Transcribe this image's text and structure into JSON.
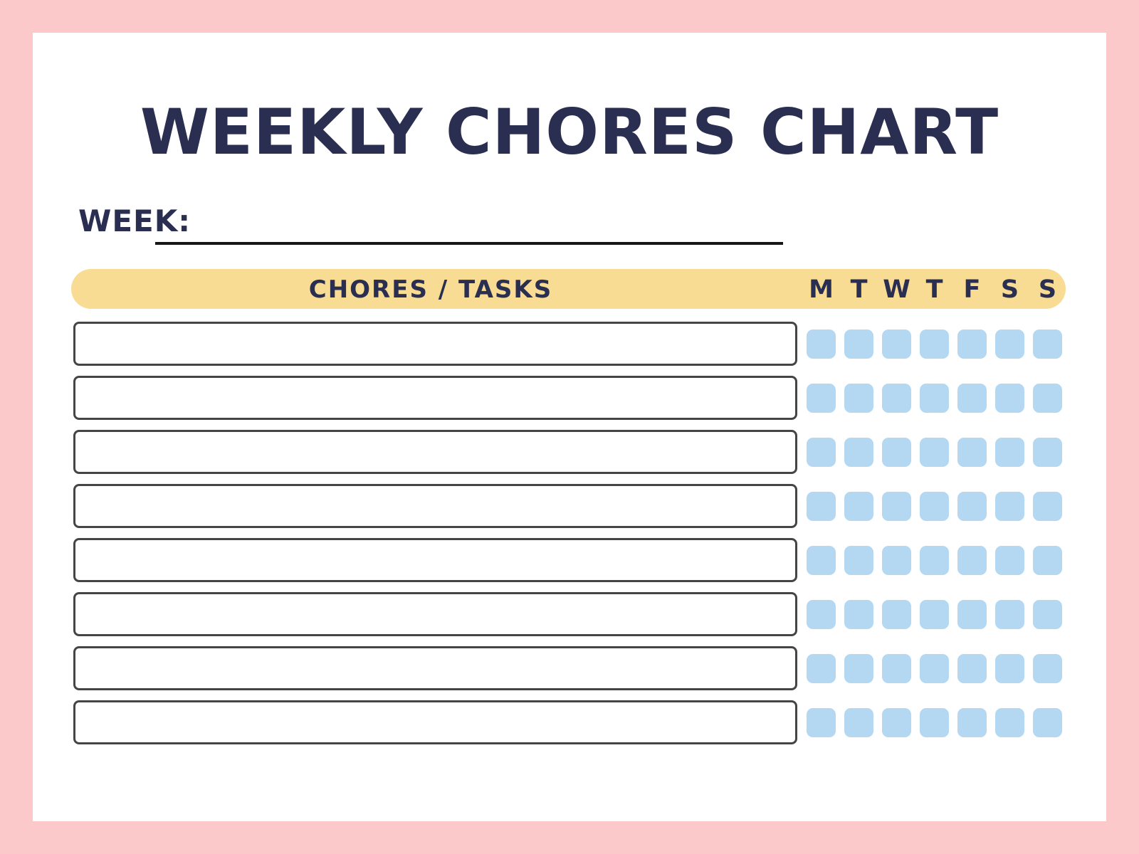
{
  "page": {
    "title": "WEEKLY CHORES CHART",
    "week_label": "WEEK:",
    "week_value": ""
  },
  "header": {
    "tasks_label": "CHORES / TASKS",
    "days": [
      "M",
      "T",
      "W",
      "T",
      "F",
      "S",
      "S"
    ]
  },
  "table": {
    "rows": [
      {
        "task": "",
        "days": [
          false,
          false,
          false,
          false,
          false,
          false,
          false
        ]
      },
      {
        "task": "",
        "days": [
          false,
          false,
          false,
          false,
          false,
          false,
          false
        ]
      },
      {
        "task": "",
        "days": [
          false,
          false,
          false,
          false,
          false,
          false,
          false
        ]
      },
      {
        "task": "",
        "days": [
          false,
          false,
          false,
          false,
          false,
          false,
          false
        ]
      },
      {
        "task": "",
        "days": [
          false,
          false,
          false,
          false,
          false,
          false,
          false
        ]
      },
      {
        "task": "",
        "days": [
          false,
          false,
          false,
          false,
          false,
          false,
          false
        ]
      },
      {
        "task": "",
        "days": [
          false,
          false,
          false,
          false,
          false,
          false,
          false
        ]
      },
      {
        "task": "",
        "days": [
          false,
          false,
          false,
          false,
          false,
          false,
          false
        ]
      }
    ]
  },
  "colors": {
    "frame_pink": "#fbc9c9",
    "page_white": "#ffffff",
    "header_yellow": "#f8dc94",
    "checkbox_blue": "#b4d8f2",
    "title_navy": "#2a2f52",
    "box_border": "#454545",
    "line_black": "#161616"
  }
}
